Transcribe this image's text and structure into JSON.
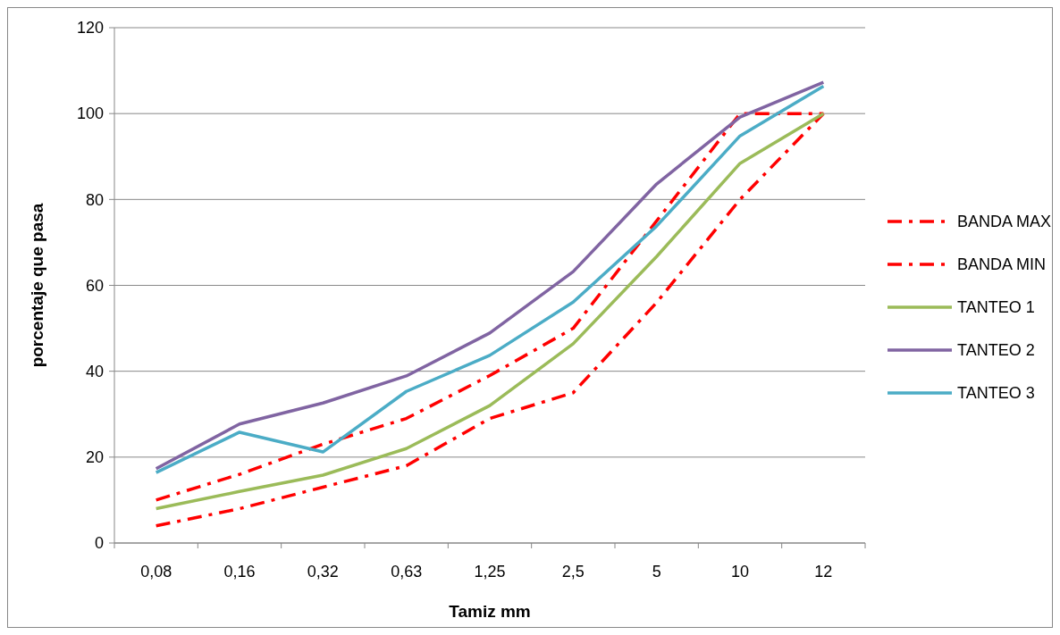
{
  "chart_data": {
    "type": "line",
    "xlabel": "Tamiz mm",
    "ylabel": "porcentaje que pasa",
    "categories": [
      "0,08",
      "0,16",
      "0,32",
      "0,63",
      "1,25",
      "2,5",
      "5",
      "10",
      "12"
    ],
    "ylim": [
      0,
      120
    ],
    "yticks": [
      0,
      20,
      40,
      60,
      80,
      100,
      120
    ],
    "grid": "y",
    "legend": "right",
    "marker": "none",
    "series": [
      {
        "name": "BANDA MAX",
        "color": "#ff0000",
        "line_style": "dashed",
        "values": [
          10,
          16,
          23,
          29,
          39,
          50,
          75,
          100,
          100
        ]
      },
      {
        "name": "BANDA MIN",
        "color": "#ff0000",
        "line_style": "dashed",
        "values": [
          4,
          8,
          13,
          18,
          29,
          35,
          56,
          80,
          100
        ]
      },
      {
        "name": "TANTEO 1",
        "color": "#9bbb59",
        "line_style": "solid",
        "values": [
          8,
          12,
          15.8,
          22,
          32,
          46.4,
          66.7,
          88.4,
          100
        ]
      },
      {
        "name": "TANTEO 2",
        "color": "#8064a2",
        "line_style": "solid",
        "values": [
          17.3,
          27.7,
          32.6,
          38.9,
          48.9,
          63.2,
          83.6,
          99.2,
          107.3
        ]
      },
      {
        "name": "TANTEO 3",
        "color": "#4bacc6",
        "line_style": "solid",
        "values": [
          16.4,
          25.8,
          21.2,
          35.3,
          43.7,
          56.1,
          73.8,
          94.8,
          106.4
        ]
      }
    ]
  }
}
